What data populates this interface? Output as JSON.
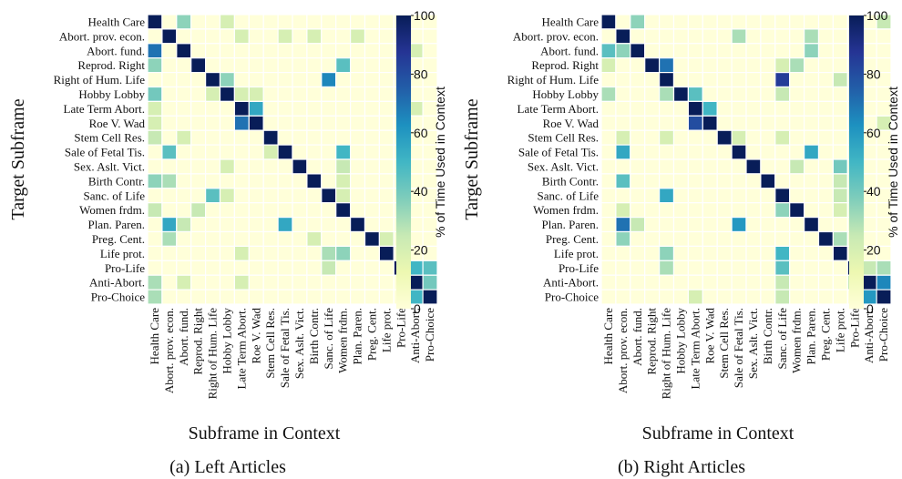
{
  "chart_data": [
    {
      "type": "heatmap",
      "caption": "(a) Left Articles",
      "xlabel": "Subframe in Context",
      "ylabel": "Target Subframe",
      "colorbar_label": "% of Time Used in Context",
      "colorbar_ticks": [
        0,
        20,
        40,
        60,
        80,
        100
      ],
      "value_range": [
        0,
        100
      ],
      "colormap": "YlGnBu",
      "categories": [
        "Health Care",
        "Abort. prov. econ.",
        "Abort. fund.",
        "Reprod. Right",
        "Right of Hum. Life",
        "Hobby Lobby",
        "Late Term Abort.",
        "Roe V. Wad",
        "Stem Cell Res.",
        "Sale of Fetal Tis.",
        "Sex. Aslt. Vict.",
        "Birth Contr.",
        "Sanc. of Life",
        "Women frdm.",
        "Plan. Paren.",
        "Preg. Cent.",
        "Life prot.",
        "Pro-Life",
        "Anti-Abort.",
        "Pro-Choice"
      ],
      "values": [
        [
          100,
          0,
          35,
          0,
          0,
          20,
          0,
          0,
          0,
          0,
          0,
          0,
          0,
          0,
          0,
          0,
          0,
          0,
          0,
          0
        ],
        [
          0,
          100,
          0,
          0,
          0,
          0,
          20,
          0,
          0,
          20,
          0,
          20,
          0,
          0,
          20,
          0,
          0,
          0,
          0,
          0
        ],
        [
          70,
          0,
          100,
          0,
          0,
          0,
          0,
          0,
          0,
          0,
          0,
          0,
          0,
          0,
          0,
          0,
          0,
          0,
          20,
          0
        ],
        [
          35,
          0,
          0,
          100,
          0,
          0,
          0,
          0,
          0,
          0,
          0,
          0,
          0,
          45,
          0,
          0,
          0,
          0,
          0,
          0
        ],
        [
          0,
          0,
          0,
          0,
          100,
          35,
          0,
          0,
          0,
          0,
          0,
          0,
          65,
          0,
          0,
          0,
          0,
          0,
          0,
          0
        ],
        [
          40,
          0,
          0,
          0,
          20,
          100,
          20,
          20,
          0,
          0,
          0,
          0,
          0,
          0,
          0,
          0,
          0,
          0,
          0,
          0
        ],
        [
          20,
          0,
          0,
          0,
          0,
          0,
          100,
          55,
          0,
          0,
          0,
          0,
          0,
          0,
          0,
          0,
          0,
          0,
          20,
          0
        ],
        [
          20,
          0,
          0,
          0,
          0,
          0,
          70,
          100,
          0,
          0,
          0,
          0,
          0,
          0,
          0,
          0,
          0,
          0,
          0,
          0
        ],
        [
          25,
          0,
          20,
          0,
          0,
          0,
          0,
          0,
          100,
          0,
          0,
          0,
          0,
          0,
          0,
          0,
          0,
          0,
          0,
          0
        ],
        [
          0,
          45,
          0,
          0,
          0,
          0,
          0,
          0,
          20,
          100,
          0,
          0,
          0,
          50,
          0,
          0,
          0,
          0,
          0,
          0
        ],
        [
          0,
          0,
          0,
          0,
          0,
          20,
          0,
          0,
          0,
          0,
          100,
          0,
          0,
          25,
          0,
          0,
          0,
          0,
          0,
          0
        ],
        [
          35,
          30,
          0,
          0,
          0,
          0,
          0,
          0,
          0,
          0,
          0,
          100,
          0,
          20,
          0,
          0,
          0,
          0,
          0,
          0
        ],
        [
          0,
          0,
          0,
          0,
          45,
          20,
          0,
          0,
          0,
          0,
          0,
          0,
          100,
          20,
          0,
          0,
          0,
          0,
          0,
          0
        ],
        [
          25,
          0,
          0,
          25,
          0,
          0,
          0,
          0,
          0,
          0,
          0,
          0,
          0,
          100,
          0,
          0,
          0,
          0,
          0,
          0
        ],
        [
          0,
          55,
          25,
          0,
          0,
          0,
          0,
          0,
          0,
          55,
          0,
          0,
          0,
          0,
          100,
          0,
          0,
          0,
          0,
          0
        ],
        [
          0,
          30,
          0,
          0,
          0,
          0,
          0,
          0,
          0,
          0,
          0,
          20,
          0,
          0,
          0,
          100,
          20,
          0,
          0,
          0
        ],
        [
          0,
          0,
          0,
          0,
          0,
          0,
          20,
          0,
          0,
          0,
          0,
          0,
          30,
          35,
          0,
          0,
          100,
          0,
          0,
          0
        ],
        [
          0,
          0,
          0,
          0,
          0,
          0,
          0,
          0,
          0,
          0,
          0,
          0,
          25,
          0,
          0,
          0,
          0,
          100,
          50,
          45
        ],
        [
          30,
          0,
          20,
          0,
          0,
          0,
          20,
          0,
          0,
          0,
          0,
          0,
          0,
          0,
          0,
          0,
          0,
          0,
          100,
          40
        ],
        [
          30,
          0,
          0,
          0,
          0,
          0,
          0,
          0,
          0,
          0,
          0,
          0,
          0,
          0,
          0,
          0,
          0,
          0,
          50,
          100
        ]
      ]
    },
    {
      "type": "heatmap",
      "caption": "(b) Right Articles",
      "xlabel": "Subframe in Context",
      "ylabel": "Target Subframe",
      "colorbar_label": "% of Time Used in Context",
      "colorbar_ticks": [
        0,
        20,
        40,
        60,
        80,
        100
      ],
      "value_range": [
        0,
        100
      ],
      "colormap": "YlGnBu",
      "categories": [
        "Health Care",
        "Abort. prov. econ.",
        "Abort. fund.",
        "Reprod. Right",
        "Right of Hum. Life",
        "Hobby Lobby",
        "Late Term Abort.",
        "Roe V. Wad",
        "Stem Cell Res.",
        "Sale of Fetal Tis.",
        "Sex. Aslt. Vict.",
        "Birth Contr.",
        "Sanc. of Life",
        "Women frdm.",
        "Plan. Paren.",
        "Preg. Cent.",
        "Life prot.",
        "Pro-Life",
        "Anti-Abort.",
        "Pro-Choice"
      ],
      "values": [
        [
          100,
          0,
          35,
          0,
          0,
          0,
          0,
          0,
          0,
          0,
          0,
          0,
          0,
          0,
          0,
          0,
          0,
          0,
          0,
          25
        ],
        [
          0,
          100,
          0,
          0,
          0,
          0,
          0,
          0,
          0,
          30,
          0,
          0,
          0,
          0,
          30,
          0,
          0,
          0,
          0,
          0
        ],
        [
          45,
          35,
          100,
          0,
          0,
          0,
          0,
          0,
          0,
          0,
          0,
          0,
          0,
          0,
          35,
          0,
          0,
          0,
          0,
          0
        ],
        [
          20,
          0,
          0,
          100,
          70,
          0,
          0,
          0,
          0,
          0,
          0,
          0,
          20,
          30,
          0,
          0,
          0,
          0,
          0,
          0
        ],
        [
          0,
          0,
          0,
          0,
          100,
          0,
          0,
          0,
          0,
          0,
          0,
          0,
          85,
          0,
          0,
          0,
          25,
          0,
          0,
          0
        ],
        [
          30,
          0,
          0,
          0,
          30,
          100,
          45,
          0,
          0,
          0,
          0,
          0,
          25,
          0,
          0,
          0,
          0,
          0,
          0,
          0
        ],
        [
          0,
          0,
          0,
          0,
          0,
          0,
          100,
          50,
          0,
          0,
          0,
          0,
          0,
          0,
          0,
          0,
          0,
          0,
          0,
          0
        ],
        [
          0,
          0,
          0,
          0,
          0,
          0,
          80,
          100,
          0,
          0,
          0,
          0,
          0,
          0,
          0,
          0,
          0,
          0,
          0,
          20
        ],
        [
          0,
          20,
          0,
          0,
          20,
          0,
          0,
          0,
          100,
          20,
          0,
          0,
          20,
          0,
          0,
          0,
          0,
          0,
          0,
          0
        ],
        [
          0,
          55,
          0,
          0,
          0,
          0,
          0,
          0,
          0,
          100,
          0,
          0,
          0,
          0,
          55,
          0,
          0,
          0,
          0,
          0
        ],
        [
          0,
          0,
          0,
          0,
          0,
          0,
          0,
          0,
          0,
          0,
          100,
          0,
          0,
          25,
          0,
          0,
          40,
          0,
          0,
          0
        ],
        [
          0,
          45,
          0,
          0,
          0,
          0,
          0,
          0,
          0,
          0,
          0,
          100,
          0,
          0,
          0,
          0,
          25,
          0,
          0,
          0
        ],
        [
          0,
          0,
          0,
          0,
          55,
          0,
          0,
          0,
          0,
          0,
          0,
          0,
          100,
          0,
          0,
          0,
          25,
          0,
          0,
          0
        ],
        [
          0,
          20,
          0,
          0,
          0,
          0,
          0,
          0,
          0,
          0,
          0,
          0,
          35,
          100,
          0,
          0,
          20,
          0,
          0,
          0
        ],
        [
          0,
          70,
          25,
          0,
          0,
          0,
          0,
          0,
          0,
          60,
          0,
          0,
          0,
          0,
          100,
          0,
          0,
          0,
          0,
          0
        ],
        [
          0,
          35,
          0,
          0,
          0,
          0,
          0,
          0,
          0,
          0,
          0,
          0,
          0,
          0,
          0,
          100,
          30,
          0,
          0,
          0
        ],
        [
          0,
          0,
          0,
          0,
          35,
          0,
          0,
          0,
          0,
          0,
          0,
          0,
          50,
          0,
          0,
          0,
          100,
          0,
          0,
          0
        ],
        [
          0,
          0,
          0,
          0,
          30,
          0,
          0,
          0,
          0,
          0,
          0,
          0,
          45,
          0,
          0,
          0,
          0,
          100,
          25,
          30
        ],
        [
          0,
          0,
          0,
          0,
          0,
          0,
          0,
          0,
          0,
          0,
          0,
          0,
          25,
          0,
          0,
          0,
          0,
          25,
          100,
          65
        ],
        [
          0,
          0,
          0,
          0,
          0,
          0,
          20,
          0,
          0,
          0,
          0,
          0,
          25,
          0,
          0,
          0,
          0,
          0,
          60,
          100
        ]
      ]
    }
  ]
}
